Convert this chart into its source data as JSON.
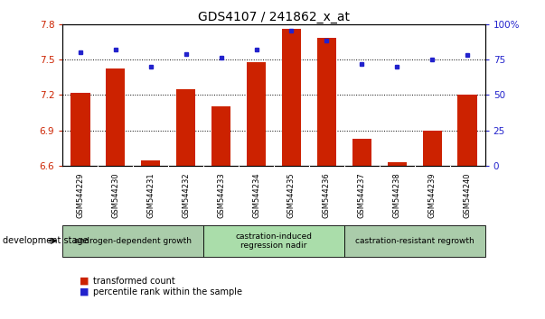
{
  "title": "GDS4107 / 241862_x_at",
  "samples": [
    "GSM544229",
    "GSM544230",
    "GSM544231",
    "GSM544232",
    "GSM544233",
    "GSM544234",
    "GSM544235",
    "GSM544236",
    "GSM544237",
    "GSM544238",
    "GSM544239",
    "GSM544240"
  ],
  "bar_values": [
    7.22,
    7.42,
    6.65,
    7.25,
    7.1,
    7.48,
    7.76,
    7.68,
    6.83,
    6.63,
    6.9,
    7.2
  ],
  "dot_values": [
    80,
    82,
    70,
    79,
    76,
    82,
    95,
    88,
    72,
    70,
    75,
    78
  ],
  "bar_color": "#cc2200",
  "dot_color": "#2222cc",
  "ylim_left": [
    6.6,
    7.8
  ],
  "ylim_right": [
    0,
    100
  ],
  "yticks_left": [
    6.6,
    6.9,
    7.2,
    7.5,
    7.8
  ],
  "ytick_labels_left": [
    "6.6",
    "6.9",
    "7.2",
    "7.5",
    "7.8"
  ],
  "yticks_right": [
    0,
    25,
    50,
    75,
    100
  ],
  "ytick_labels_right": [
    "0",
    "25",
    "50",
    "75",
    "100%"
  ],
  "grid_lines": [
    6.9,
    7.2,
    7.5
  ],
  "groups": [
    {
      "label": "androgen-dependent growth",
      "start": 0,
      "end": 3,
      "color": "#aaccaa"
    },
    {
      "label": "castration-induced\nregression nadir",
      "start": 4,
      "end": 7,
      "color": "#aaddaa"
    },
    {
      "label": "castration-resistant regrowth",
      "start": 8,
      "end": 11,
      "color": "#aaccaa"
    }
  ],
  "legend_red_label": "transformed count",
  "legend_blue_label": "percentile rank within the sample",
  "dev_stage_label": "development stage",
  "bar_bottom": 6.6,
  "tick_fontsize": 7.5,
  "sample_fontsize": 6.0,
  "group_fontsize": 6.5,
  "title_fontsize": 10
}
